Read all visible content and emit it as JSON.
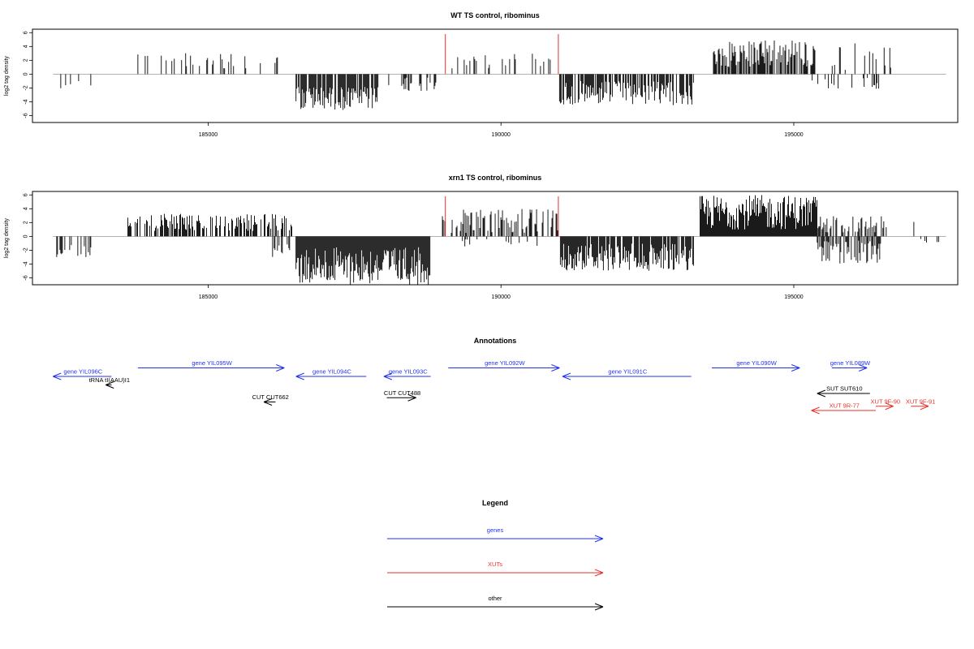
{
  "chart_data": [
    {
      "type": "bar",
      "title": "WT TS control, ribominus",
      "ylabel": "log2 tag density",
      "xlim": [
        182000,
        197800
      ],
      "ylim": [
        -7,
        6.5
      ],
      "xticks": [
        185000,
        190000,
        195000
      ],
      "xtick_labels": [
        "185000",
        "190000",
        "195000"
      ],
      "yticks": [
        -6,
        -4,
        -2,
        0,
        2,
        4,
        6
      ],
      "ytick_labels": [
        "-6",
        "-4",
        "-2",
        "0",
        "2",
        "4",
        "6"
      ],
      "markers": [
        189050,
        190980
      ],
      "marker_color": "#e8322c",
      "baseline_range": [
        182350,
        197600
      ],
      "segments": [
        {
          "from": 182400,
          "to": 183000,
          "sign": -1,
          "min": 0.8,
          "max": 2.2,
          "density": 0.2
        },
        {
          "from": 183800,
          "to": 184000,
          "sign": 1,
          "min": 2.5,
          "max": 3.0,
          "density": 0.1
        },
        {
          "from": 184200,
          "to": 185900,
          "sign": 1,
          "min": 0.5,
          "max": 3.2,
          "density": 0.25
        },
        {
          "from": 186100,
          "to": 186300,
          "sign": 1,
          "min": 1.0,
          "max": 2.5,
          "density": 0.3
        },
        {
          "from": 186500,
          "to": 187900,
          "sign": -1,
          "min": 1.8,
          "max": 5.2,
          "density": 0.8
        },
        {
          "from": 188000,
          "to": 188900,
          "sign": -1,
          "min": 0.5,
          "max": 2.5,
          "density": 0.3
        },
        {
          "from": 189150,
          "to": 190950,
          "sign": 1,
          "min": 0.5,
          "max": 3.0,
          "density": 0.2
        },
        {
          "from": 191000,
          "to": 193300,
          "sign": -1,
          "min": 1.0,
          "max": 4.5,
          "density": 0.7
        },
        {
          "from": 193600,
          "to": 195400,
          "sign": 1,
          "min": 1.0,
          "max": 5.0,
          "density": 0.7
        },
        {
          "from": 195300,
          "to": 196500,
          "sign": -1,
          "min": 0.5,
          "max": 2.2,
          "density": 0.12
        },
        {
          "from": 195600,
          "to": 196700,
          "sign": 1,
          "min": 0.5,
          "max": 4.5,
          "density": 0.15
        }
      ]
    },
    {
      "type": "bar",
      "title": "xrn1 TS control, ribominus",
      "ylabel": "log2 tag density",
      "xlim": [
        182000,
        197800
      ],
      "ylim": [
        -7,
        6.5
      ],
      "xticks": [
        185000,
        190000,
        195000
      ],
      "xtick_labels": [
        "185000",
        "190000",
        "195000"
      ],
      "yticks": [
        -6,
        -4,
        -2,
        0,
        2,
        4,
        6
      ],
      "ytick_labels": [
        "-6",
        "-4",
        "-2",
        "0",
        "2",
        "4",
        "6"
      ],
      "markers": [
        189050,
        190980
      ],
      "marker_color": "#e8322c",
      "baseline_range": [
        182350,
        197600
      ],
      "segments": [
        {
          "from": 182400,
          "to": 183000,
          "sign": -1,
          "min": 1.0,
          "max": 3.0,
          "density": 0.4
        },
        {
          "from": 183600,
          "to": 186500,
          "sign": 1,
          "min": 0.8,
          "max": 3.3,
          "density": 0.55
        },
        {
          "from": 186100,
          "to": 186400,
          "sign": -1,
          "min": 1.0,
          "max": 3.0,
          "density": 0.3
        },
        {
          "from": 186500,
          "to": 188800,
          "sign": -1,
          "min": 1.5,
          "max": 7.0,
          "density": 1.0
        },
        {
          "from": 189000,
          "to": 191000,
          "sign": 1,
          "min": 0.5,
          "max": 4.0,
          "density": 0.5
        },
        {
          "from": 189300,
          "to": 190800,
          "sign": -1,
          "min": 0.3,
          "max": 1.5,
          "density": 0.15
        },
        {
          "from": 191000,
          "to": 193300,
          "sign": -1,
          "min": 1.0,
          "max": 5.0,
          "density": 0.9
        },
        {
          "from": 193400,
          "to": 195400,
          "sign": 1,
          "min": 1.0,
          "max": 6.0,
          "density": 1.0
        },
        {
          "from": 195400,
          "to": 196500,
          "sign": -1,
          "min": 0.5,
          "max": 4.0,
          "density": 0.6
        },
        {
          "from": 195400,
          "to": 196600,
          "sign": 1,
          "min": 0.5,
          "max": 3.0,
          "density": 0.5
        },
        {
          "from": 197100,
          "to": 197500,
          "sign": -1,
          "min": 0.3,
          "max": 1.0,
          "density": 0.2
        },
        {
          "from": 197050,
          "to": 197120,
          "sign": 1,
          "min": 2.0,
          "max": 2.2,
          "density": 0.1
        }
      ]
    }
  ],
  "annotations": {
    "title": "Annotations",
    "features": [
      {
        "label": "gene YIL096C",
        "start": 182350,
        "end": 183350,
        "strand": "-",
        "color": "#2233ee",
        "row": 0
      },
      {
        "label": "gene YIL095W",
        "start": 183800,
        "end": 186300,
        "strand": "+",
        "color": "#2233ee",
        "row": -1
      },
      {
        "label": "gene YIL094C",
        "start": 186500,
        "end": 187700,
        "strand": "-",
        "color": "#2233ee",
        "row": 0
      },
      {
        "label": "gene YIL093C",
        "start": 188000,
        "end": 188800,
        "strand": "-",
        "color": "#2233ee",
        "row": 0
      },
      {
        "label": "gene YIL092W",
        "start": 189100,
        "end": 191000,
        "strand": "+",
        "color": "#2233ee",
        "row": -1
      },
      {
        "label": "gene YIL091C",
        "start": 191050,
        "end": 193250,
        "strand": "-",
        "color": "#2233ee",
        "row": 0
      },
      {
        "label": "gene YIL090W",
        "start": 193600,
        "end": 195100,
        "strand": "+",
        "color": "#2233ee",
        "row": -1
      },
      {
        "label": "gene YIL089W",
        "start": 195650,
        "end": 196250,
        "strand": "+",
        "color": "#2233ee",
        "row": -1
      },
      {
        "label": "tRNA tI(AAU)I1",
        "start": 183250,
        "end": 183350,
        "strand": "-",
        "color": "#000000",
        "row": 1
      },
      {
        "label": "CUT CUT662",
        "start": 185950,
        "end": 186150,
        "strand": "-",
        "color": "#000000",
        "row": 3
      },
      {
        "label": "CUT CUT488",
        "start": 188050,
        "end": 188550,
        "strand": "+",
        "color": "#000000",
        "row": 2.5
      },
      {
        "label": "SUT SUT610",
        "start": 195400,
        "end": 196300,
        "strand": "-",
        "color": "#000000",
        "row": 2
      },
      {
        "label": "XUT 9R-77",
        "start": 195300,
        "end": 196400,
        "strand": "-",
        "color": "#e8322c",
        "row": 4
      },
      {
        "label": "XUT 9F-90",
        "start": 196400,
        "end": 196700,
        "strand": "+",
        "color": "#e8322c",
        "row": 3.5
      },
      {
        "label": "XUT 9F-91",
        "start": 197000,
        "end": 197300,
        "strand": "+",
        "color": "#e8322c",
        "row": 3.5
      }
    ]
  },
  "legend": {
    "title": "Legend",
    "items": [
      {
        "label": "genes",
        "color": "#2233ee"
      },
      {
        "label": "XUTs",
        "color": "#e8322c"
      },
      {
        "label": "other",
        "color": "#000000"
      }
    ]
  }
}
